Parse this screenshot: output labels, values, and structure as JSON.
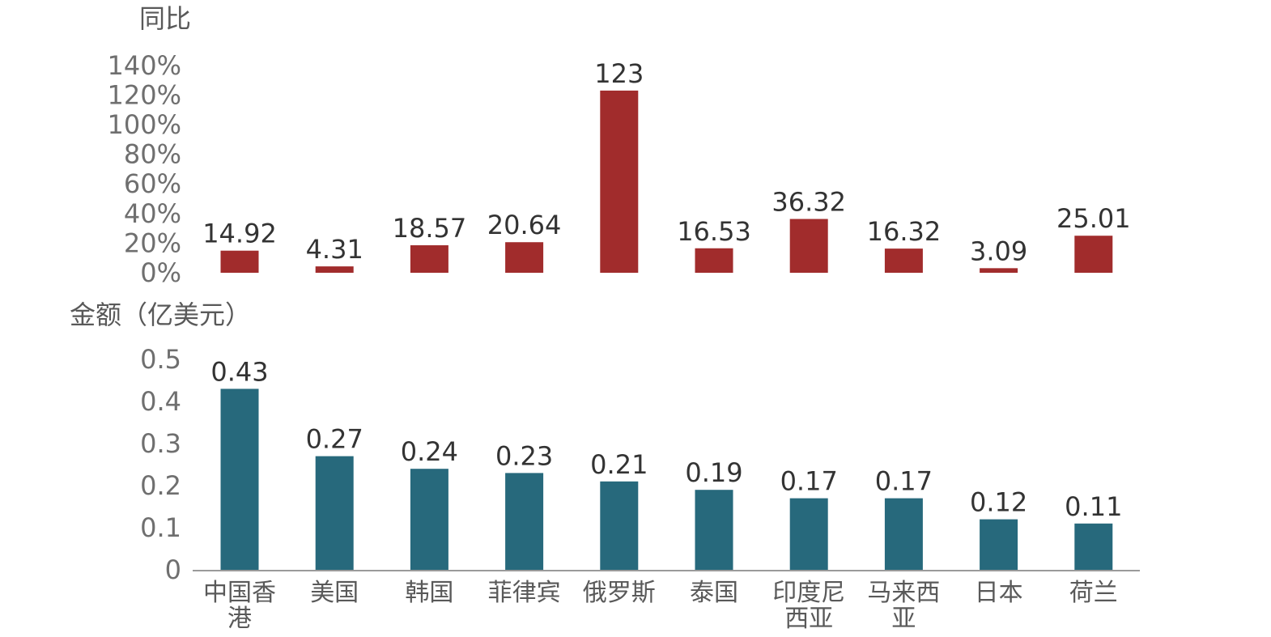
{
  "colors": {
    "yoy_bar": "#A12C2C",
    "amount_bar": "#27697C",
    "axis_line": "#9A9A9A"
  },
  "chart_data": [
    {
      "type": "bar",
      "ylabel": "同比",
      "ylim": [
        0,
        140
      ],
      "yticks": [
        "0%",
        "20%",
        "40%",
        "60%",
        "80%",
        "100%",
        "120%",
        "140%"
      ],
      "categories": [
        "中国香港",
        "美国",
        "韩国",
        "菲律宾",
        "俄罗斯",
        "泰国",
        "印度尼西亚",
        "马来西亚",
        "日本",
        "荷兰"
      ],
      "values": [
        14.92,
        4.31,
        18.57,
        20.64,
        123,
        16.53,
        36.32,
        16.32,
        3.09,
        25.01
      ],
      "data_labels": [
        "14.92",
        "4.31",
        "18.57",
        "20.64",
        "123",
        "16.53",
        "36.32",
        "16.32",
        "3.09",
        "25.01"
      ],
      "grid": false
    },
    {
      "type": "bar",
      "ylabel": "金额（亿美元）",
      "ylim": [
        0,
        0.5
      ],
      "yticks": [
        "0",
        "0.1",
        "0.2",
        "0.3",
        "0.4",
        "0.5"
      ],
      "categories": [
        "中国香港",
        "美国",
        "韩国",
        "菲律宾",
        "俄罗斯",
        "泰国",
        "印度尼西亚",
        "马来西亚",
        "日本",
        "荷兰"
      ],
      "category_lines": [
        [
          "中国香",
          "港"
        ],
        [
          "美国"
        ],
        [
          "韩国"
        ],
        [
          "菲律宾"
        ],
        [
          "俄罗斯"
        ],
        [
          "泰国"
        ],
        [
          "印度尼",
          "西亚"
        ],
        [
          "马来西",
          "亚"
        ],
        [
          "日本"
        ],
        [
          "荷兰"
        ]
      ],
      "values": [
        0.43,
        0.27,
        0.24,
        0.23,
        0.21,
        0.19,
        0.17,
        0.17,
        0.12,
        0.11
      ],
      "data_labels": [
        "0.43",
        "0.27",
        "0.24",
        "0.23",
        "0.21",
        "0.19",
        "0.17",
        "0.17",
        "0.12",
        "0.11"
      ],
      "grid": false
    }
  ]
}
